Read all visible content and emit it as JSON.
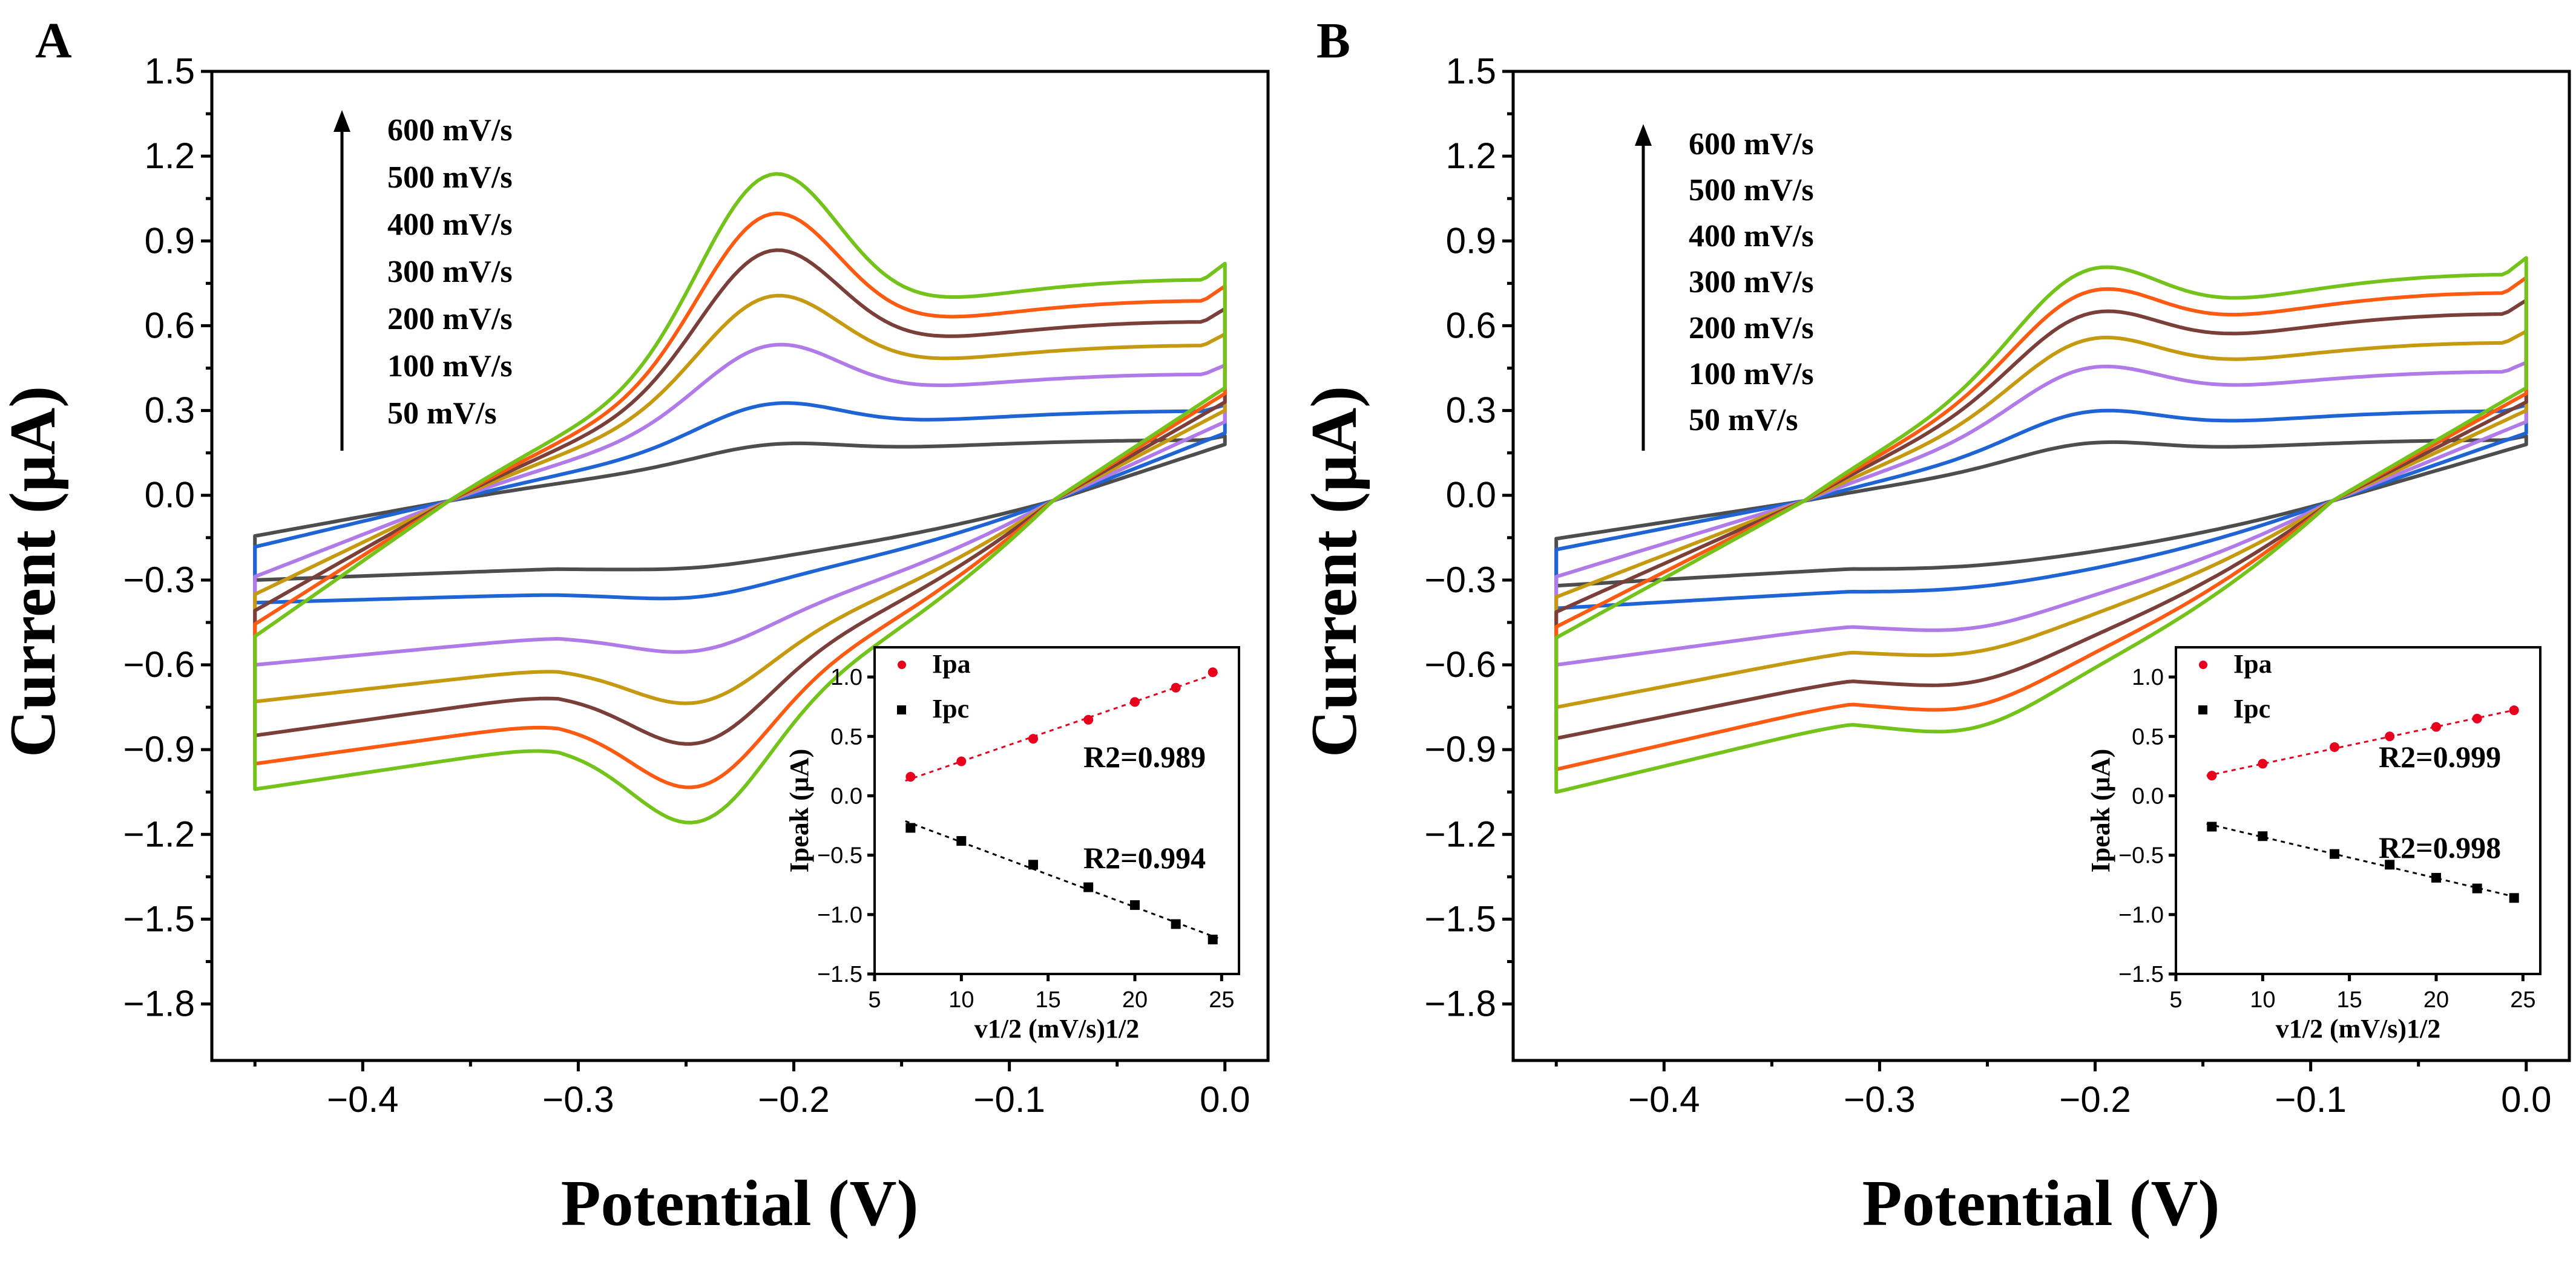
{
  "chart_data": [
    {
      "type": "line",
      "panel_label": "A",
      "xlabel": "Potential (V)",
      "ylabel": "Current (μA)",
      "xlim": [
        -0.47,
        0.02
      ],
      "ylim": [
        -2.0,
        1.5
      ],
      "x_ticks": [
        -0.4,
        -0.3,
        -0.2,
        -0.1,
        0.0
      ],
      "x_tick_labels": [
        "−0.4",
        "−0.3",
        "−0.2",
        "−0.1",
        "0.0"
      ],
      "y_ticks": [
        1.5,
        1.2,
        0.9,
        0.6,
        0.3,
        0.0,
        -0.3,
        -0.6,
        -0.9,
        -1.2,
        -1.5,
        -1.8
      ],
      "y_tick_labels": [
        "1.5",
        "1.2",
        "0.9",
        "0.6",
        "0.3",
        "0.0",
        "−0.3",
        "−0.6",
        "−0.9",
        "−1.2",
        "−1.5",
        "−1.8"
      ],
      "legend_entries": [
        "600 mV/s",
        "500 mV/s",
        "400 mV/s",
        "300 mV/s",
        "200 mV/s",
        "100 mV/s",
        "50 mV/s"
      ],
      "legend_position": "top-left",
      "peak_params": {
        "Epa": -0.212,
        "Epc": -0.243,
        "xcross_low": -0.36,
        "xcross_high": -0.08
      },
      "series": [
        {
          "name": "50 mV/s",
          "color": "#4d4d4d",
          "ipa": 0.16,
          "ipc": -0.27,
          "top_end": 0.21,
          "bot_start": -0.3,
          "vert_low": 0.18,
          "bot_mid": -0.26
        },
        {
          "name": "100 mV/s",
          "color": "#1f64d4",
          "ipa": 0.29,
          "ipc": -0.38,
          "top_end": 0.32,
          "bot_start": -0.38,
          "vert_low": 0.22,
          "bot_mid": -0.35
        },
        {
          "name": "200 mV/s",
          "color": "#b07be8",
          "ipa": 0.48,
          "ipc": -0.58,
          "top_end": 0.46,
          "bot_start": -0.6,
          "vert_low": 0.26,
          "bot_mid": -0.5
        },
        {
          "name": "300 mV/s",
          "color": "#c59a11",
          "ipa": 0.64,
          "ipc": -0.77,
          "top_end": 0.57,
          "bot_start": -0.73,
          "vert_low": 0.3,
          "bot_mid": -0.61
        },
        {
          "name": "400 mV/s",
          "color": "#7b3f3a",
          "ipa": 0.79,
          "ipc": -0.92,
          "top_end": 0.66,
          "bot_start": -0.85,
          "vert_low": 0.33,
          "bot_mid": -0.7
        },
        {
          "name": "500 mV/s",
          "color": "#ff5a12",
          "ipa": 0.91,
          "ipc": -1.08,
          "top_end": 0.74,
          "bot_start": -0.95,
          "vert_low": 0.36,
          "bot_mid": -0.8
        },
        {
          "name": "600 mV/s",
          "color": "#73c31b",
          "ipa": 1.04,
          "ipc": -1.21,
          "top_end": 0.82,
          "bot_start": -1.04,
          "vert_low": 0.38,
          "bot_mid": -0.88
        }
      ],
      "inset": {
        "xlabel": "v1/2 (mV/s)1/2",
        "ylabel": "Ipeak (μA)",
        "xlim": [
          5,
          26
        ],
        "ylim": [
          -1.5,
          1.25
        ],
        "x_ticks": [
          5,
          10,
          15,
          20,
          25
        ],
        "x_tick_labels": [
          "5",
          "10",
          "15",
          "20",
          "25"
        ],
        "y_ticks": [
          1.0,
          0.5,
          0.0,
          -0.5,
          -1.0,
          -1.5
        ],
        "y_tick_labels": [
          "1.0",
          "0.5",
          "0.0",
          "−0.5",
          "−1.0",
          "−1.5"
        ],
        "x_values": [
          7.07,
          10.0,
          14.14,
          17.32,
          20.0,
          22.36,
          24.49
        ],
        "series": [
          {
            "name": "Ipa",
            "color": "#e8001c",
            "marker": "circle",
            "values": [
              0.16,
              0.29,
              0.48,
              0.64,
              0.79,
              0.91,
              1.04
            ],
            "r2": "R2=0.989"
          },
          {
            "name": "Ipc",
            "color": "#000000",
            "marker": "square",
            "values": [
              -0.27,
              -0.38,
              -0.58,
              -0.77,
              -0.92,
              -1.08,
              -1.21
            ],
            "r2": "R2=0.994"
          }
        ]
      }
    },
    {
      "type": "line",
      "panel_label": "B",
      "xlabel": "Potential (V)",
      "ylabel": "Current (μA)",
      "xlim": [
        -0.47,
        0.02
      ],
      "ylim": [
        -2.0,
        1.5
      ],
      "x_ticks": [
        -0.4,
        -0.3,
        -0.2,
        -0.1,
        0.0
      ],
      "x_tick_labels": [
        "−0.4",
        "−0.3",
        "−0.2",
        "−0.1",
        "0.0"
      ],
      "y_ticks": [
        1.5,
        1.2,
        0.9,
        0.6,
        0.3,
        0.0,
        -0.3,
        -0.6,
        -0.9,
        -1.2,
        -1.5,
        -1.8
      ],
      "y_tick_labels": [
        "1.5",
        "1.2",
        "0.9",
        "0.6",
        "0.3",
        "0.0",
        "−0.3",
        "−0.6",
        "−0.9",
        "−1.2",
        "−1.5",
        "−1.8"
      ],
      "legend_entries": [
        "600 mV/s",
        "500 mV/s",
        "400 mV/s",
        "300 mV/s",
        "200 mV/s",
        "100 mV/s",
        "50 mV/s"
      ],
      "legend_position": "top-left",
      "peak_params": {
        "Epa": -0.205,
        "Epc": -0.255,
        "xcross_low": -0.335,
        "xcross_high": -0.09
      },
      "series": [
        {
          "name": "50 mV/s",
          "color": "#4d4d4d",
          "ipa": 0.17,
          "ipc": -0.26,
          "top_end": 0.21,
          "bot_start": -0.32,
          "vert_low": 0.18,
          "bot_mid": -0.26
        },
        {
          "name": "100 mV/s",
          "color": "#1f64d4",
          "ipa": 0.27,
          "ipc": -0.34,
          "top_end": 0.32,
          "bot_start": -0.4,
          "vert_low": 0.22,
          "bot_mid": -0.34
        },
        {
          "name": "200 mV/s",
          "color": "#b07be8",
          "ipa": 0.41,
          "ipc": -0.49,
          "top_end": 0.47,
          "bot_start": -0.6,
          "vert_low": 0.26,
          "bot_mid": -0.46
        },
        {
          "name": "300 mV/s",
          "color": "#c59a11",
          "ipa": 0.5,
          "ipc": -0.58,
          "top_end": 0.58,
          "bot_start": -0.75,
          "vert_low": 0.3,
          "bot_mid": -0.55
        },
        {
          "name": "400 mV/s",
          "color": "#7b3f3a",
          "ipa": 0.58,
          "ipc": -0.69,
          "top_end": 0.69,
          "bot_start": -0.86,
          "vert_low": 0.33,
          "bot_mid": -0.65
        },
        {
          "name": "500 mV/s",
          "color": "#ff5a12",
          "ipa": 0.65,
          "ipc": -0.78,
          "top_end": 0.77,
          "bot_start": -0.97,
          "vert_low": 0.36,
          "bot_mid": -0.73
        },
        {
          "name": "600 mV/s",
          "color": "#73c31b",
          "ipa": 0.72,
          "ipc": -0.86,
          "top_end": 0.84,
          "bot_start": -1.05,
          "vert_low": 0.38,
          "bot_mid": -0.8
        }
      ],
      "inset": {
        "xlabel": "v1/2 (mV/s)1/2",
        "ylabel": "Ipeak (μA)",
        "xlim": [
          5,
          26
        ],
        "ylim": [
          -1.5,
          1.25
        ],
        "x_ticks": [
          5,
          10,
          15,
          20,
          25
        ],
        "x_tick_labels": [
          "5",
          "10",
          "15",
          "20",
          "25"
        ],
        "y_ticks": [
          1.0,
          0.5,
          0.0,
          -0.5,
          -1.0,
          -1.5
        ],
        "y_tick_labels": [
          "1.0",
          "0.5",
          "0.0",
          "−0.5",
          "−1.0",
          "−1.5"
        ],
        "x_values": [
          7.07,
          10.0,
          14.14,
          17.32,
          20.0,
          22.36,
          24.49
        ],
        "series": [
          {
            "name": "Ipa",
            "color": "#e8001c",
            "marker": "circle",
            "values": [
              0.17,
              0.27,
              0.41,
              0.5,
              0.58,
              0.65,
              0.72
            ],
            "r2": "R2=0.999"
          },
          {
            "name": "Ipc",
            "color": "#000000",
            "marker": "square",
            "values": [
              -0.26,
              -0.34,
              -0.49,
              -0.58,
              -0.69,
              -0.78,
              -0.86
            ],
            "r2": "R2=0.998"
          }
        ]
      }
    }
  ]
}
